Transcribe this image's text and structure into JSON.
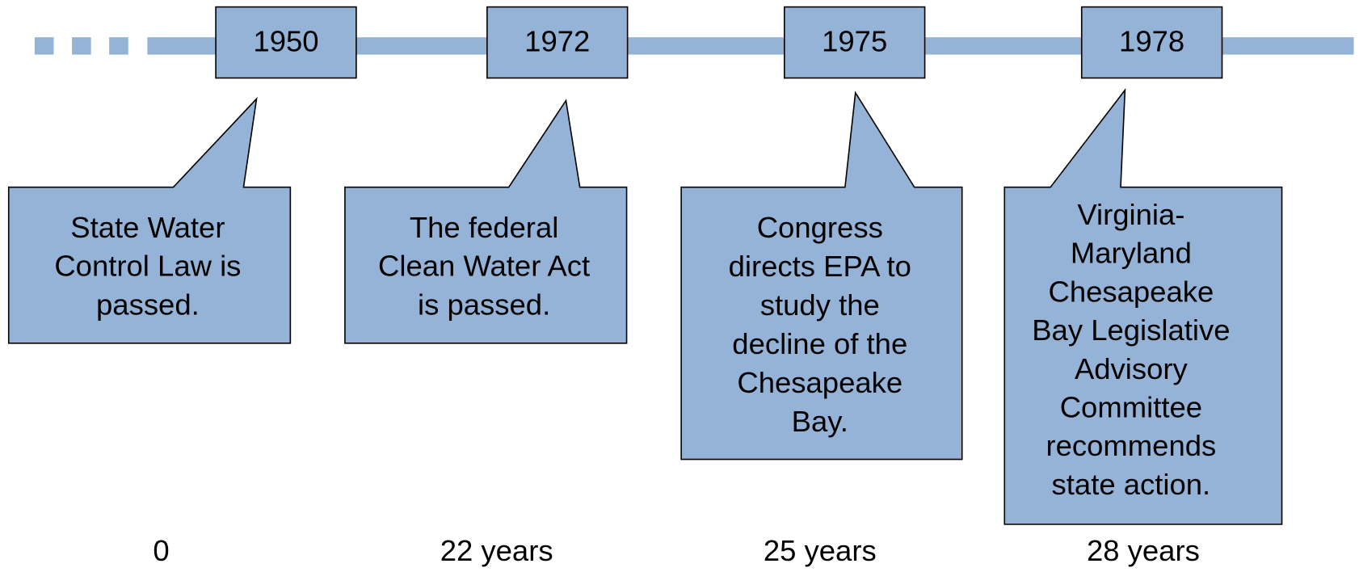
{
  "events": [
    {
      "year": "1950",
      "text": [
        "State Water",
        "Control Law is",
        "passed."
      ],
      "elapsed": "0"
    },
    {
      "year": "1972",
      "text": [
        "The federal",
        "Clean Water Act",
        "is passed."
      ],
      "elapsed": "22 years"
    },
    {
      "year": "1975",
      "text": [
        "Congress",
        "directs EPA to",
        "study the",
        "decline of the",
        "Chesapeake",
        "Bay."
      ],
      "elapsed": "25 years"
    },
    {
      "year": "1978",
      "text": [
        "Virginia-",
        "Maryland",
        "Chesapeake",
        "Bay Legislative",
        "Advisory",
        "Committee",
        "recommends",
        "state action."
      ],
      "elapsed": "28 years"
    }
  ]
}
